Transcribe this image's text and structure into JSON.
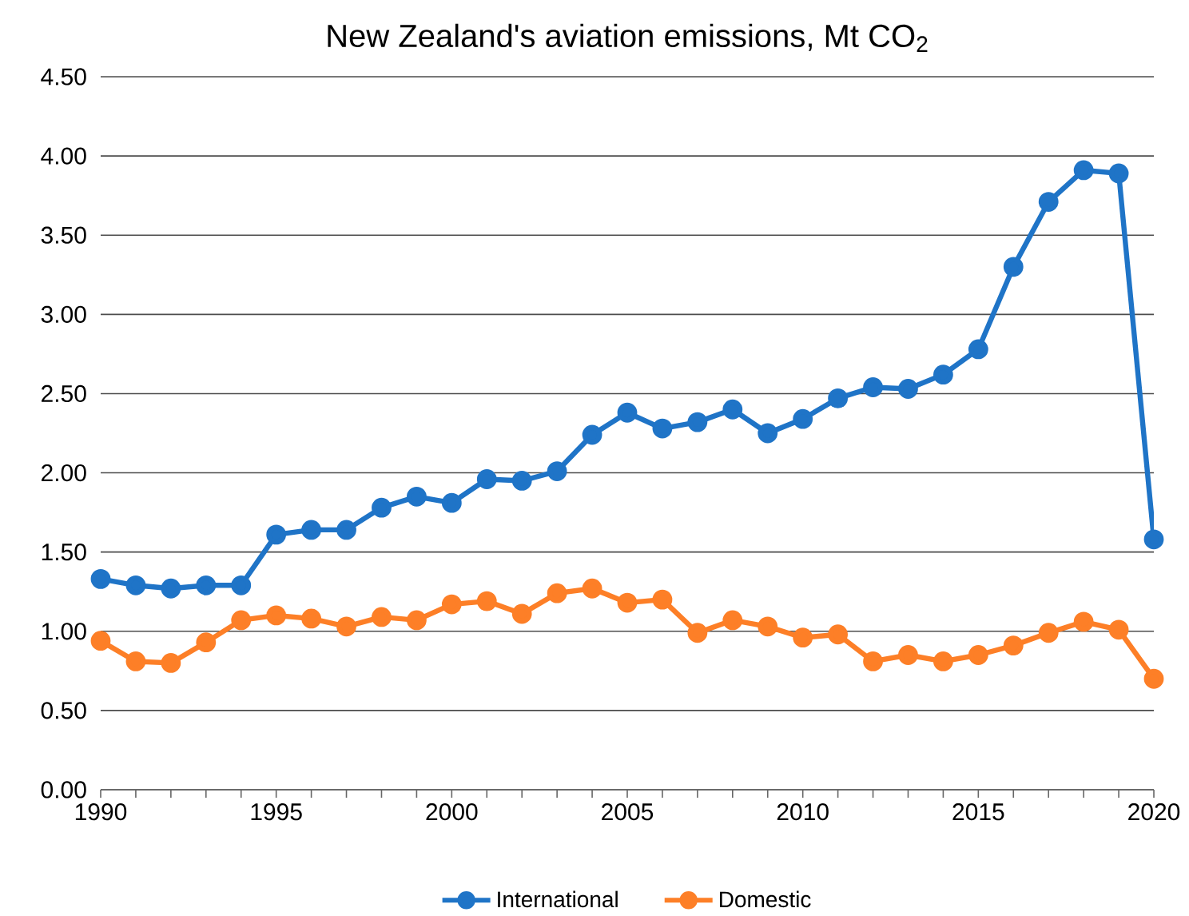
{
  "chart_data": {
    "type": "line",
    "title": "New Zealand's aviation emissions, Mt CO$_{2}$",
    "x": [
      1990,
      1991,
      1992,
      1993,
      1994,
      1995,
      1996,
      1997,
      1998,
      1999,
      2000,
      2001,
      2002,
      2003,
      2004,
      2005,
      2006,
      2007,
      2008,
      2009,
      2010,
      2011,
      2012,
      2013,
      2014,
      2015,
      2016,
      2017,
      2018,
      2019,
      2020
    ],
    "series": [
      {
        "name": "International",
        "color": "#1f74c7",
        "values": [
          1.33,
          1.29,
          1.27,
          1.29,
          1.29,
          1.61,
          1.64,
          1.64,
          1.78,
          1.85,
          1.81,
          1.96,
          1.95,
          2.01,
          2.24,
          2.38,
          2.28,
          2.32,
          2.4,
          2.25,
          2.34,
          2.47,
          2.54,
          2.53,
          2.62,
          2.78,
          3.3,
          3.71,
          3.91,
          3.89,
          1.58
        ]
      },
      {
        "name": "Domestic",
        "color": "#fd7f27",
        "values": [
          0.94,
          0.81,
          0.8,
          0.93,
          1.07,
          1.1,
          1.08,
          1.03,
          1.09,
          1.07,
          1.17,
          1.19,
          1.11,
          1.24,
          1.27,
          1.18,
          1.2,
          0.99,
          1.07,
          1.03,
          0.96,
          0.98,
          0.81,
          0.85,
          0.81,
          0.85,
          0.91,
          0.99,
          1.06,
          1.01,
          0.7
        ]
      }
    ],
    "xlim": [
      1990,
      2020
    ],
    "xticks": [
      1990,
      1995,
      2000,
      2005,
      2010,
      2015,
      2020
    ],
    "ylim": [
      0,
      4.5
    ],
    "yticks": [
      {
        "value": 0,
        "label": "0.00"
      },
      {
        "value": 0.5,
        "label": "0.50"
      },
      {
        "value": 1,
        "label": "1.00"
      },
      {
        "value": 1.5,
        "label": "1.50"
      },
      {
        "value": 2,
        "label": "2.00"
      },
      {
        "value": 2.5,
        "label": "2.50"
      },
      {
        "value": 3,
        "label": "3.00"
      },
      {
        "value": 3.5,
        "label": "3.50"
      },
      {
        "value": 4,
        "label": "4.00"
      },
      {
        "value": 4.5,
        "label": "4.50"
      }
    ],
    "grid": "y",
    "legend": "bottom",
    "marker": "circle",
    "line_style": "solid"
  }
}
